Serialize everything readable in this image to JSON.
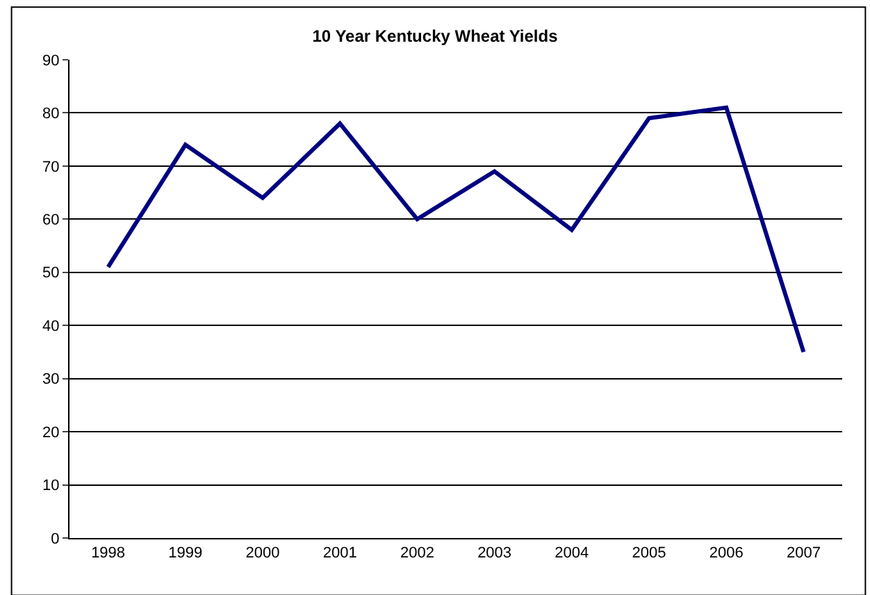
{
  "chart_data": {
    "type": "line",
    "title": "10 Year Kentucky Wheat Yields",
    "categories": [
      "1998",
      "1999",
      "2000",
      "2001",
      "2002",
      "2003",
      "2004",
      "2005",
      "2006",
      "2007"
    ],
    "series": [
      {
        "color": "#000080",
        "values": [
          51,
          74,
          64,
          78,
          60,
          69,
          58,
          79,
          81,
          35
        ]
      }
    ],
    "ylim": [
      0,
      90
    ],
    "yticks": [
      0,
      10,
      20,
      30,
      40,
      50,
      60,
      70,
      80,
      90
    ],
    "grid": "y",
    "marker": "none",
    "line_style": "solid"
  }
}
